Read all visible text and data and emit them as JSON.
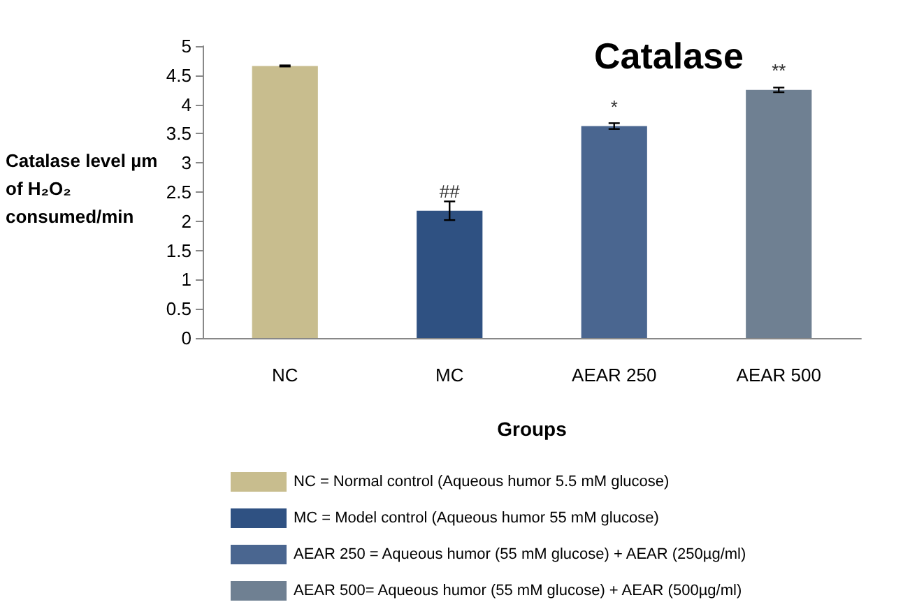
{
  "chart_data": {
    "type": "bar",
    "title": "Catalase",
    "xlabel": "Groups",
    "ylabel": "Catalase level µm of H₂O₂ consumed/min",
    "categories": [
      "NC",
      "MC",
      "AEAR 250",
      "AEAR 500"
    ],
    "stacked": true,
    "series": [
      {
        "name": "NC = Normal control (Aqueous humor 5.5 mM glucose)",
        "color": "#c8bd8e",
        "values": [
          4.66,
          null,
          null,
          null
        ],
        "errors": [
          0.01,
          null,
          null,
          null
        ]
      },
      {
        "name": "MC = Model control (Aqueous humor 55 mM glucose)",
        "color": "#2f5182",
        "values": [
          null,
          2.18,
          null,
          null
        ],
        "errors": [
          null,
          0.16,
          null,
          null
        ]
      },
      {
        "name": "AEAR 250 = Aqueous humor (55 mM glucose) + AEAR (250µg/ml)",
        "color": "#4a6690",
        "values": [
          null,
          null,
          3.63,
          null
        ],
        "errors": [
          null,
          null,
          0.05,
          null
        ]
      },
      {
        "name": "AEAR 500= Aqueous humor (55 mM glucose) + AEAR (500µg/ml)",
        "color": "#6f8092",
        "values": [
          null,
          null,
          null,
          4.25
        ],
        "errors": [
          null,
          null,
          null,
          0.04
        ]
      }
    ],
    "ylim": [
      0,
      5
    ],
    "yticks": [
      0,
      0.5,
      1,
      1.5,
      2,
      2.5,
      3,
      3.5,
      4,
      4.5,
      5
    ],
    "annotations": [
      {
        "text": "##",
        "x": "MC",
        "y": 2.18
      },
      {
        "text": "*",
        "x": "AEAR 250",
        "y": 3.63
      },
      {
        "text": "**",
        "x": "AEAR 500",
        "y": 4.25
      }
    ],
    "grid": false,
    "legend": "bottom"
  }
}
